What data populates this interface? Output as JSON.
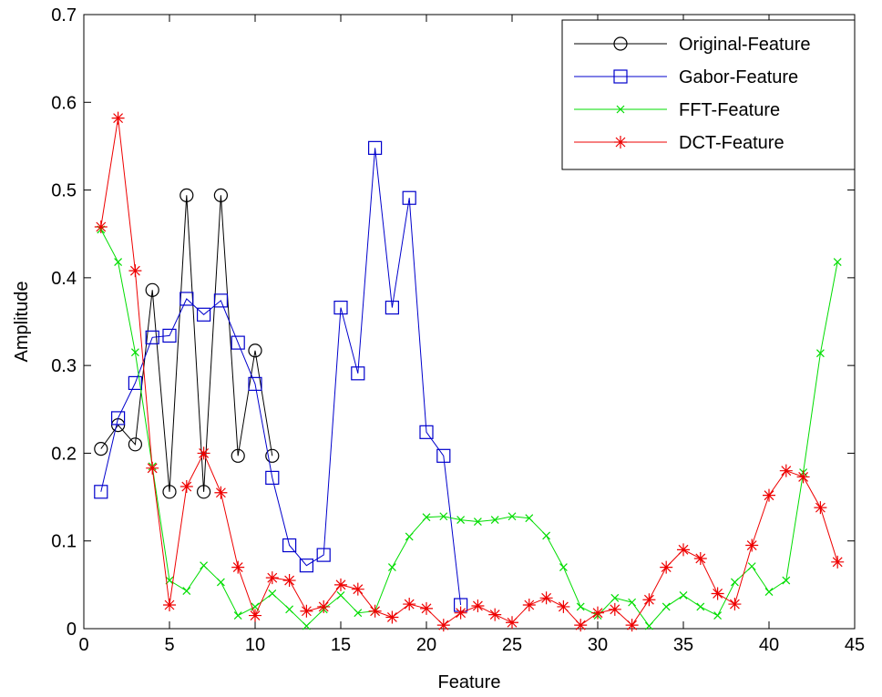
{
  "chart_data": {
    "type": "line",
    "xlabel": "Feature",
    "ylabel": "Amplitude",
    "xlim": [
      0,
      45
    ],
    "ylim": [
      0,
      0.7
    ],
    "xticks": [
      "0",
      "5",
      "10",
      "15",
      "20",
      "25",
      "30",
      "35",
      "40",
      "45"
    ],
    "yticks": [
      "0",
      "0.1",
      "0.2",
      "0.3",
      "0.4",
      "0.5",
      "0.6",
      "0.7"
    ],
    "legend_position": "top-right",
    "grid": false,
    "series": [
      {
        "name": "Original-Feature",
        "color": "#000000",
        "marker": "circle",
        "x": [
          1,
          2,
          3,
          4,
          5,
          6,
          7,
          8,
          9,
          10,
          11
        ],
        "values": [
          0.205,
          0.232,
          0.21,
          0.386,
          0.156,
          0.494,
          0.156,
          0.494,
          0.197,
          0.317,
          0.197
        ]
      },
      {
        "name": "Gabor-Feature",
        "color": "#0000cc",
        "marker": "square",
        "x": [
          1,
          2,
          3,
          4,
          5,
          6,
          7,
          8,
          9,
          10,
          11,
          12,
          13,
          14,
          15,
          16,
          17,
          18,
          19,
          20,
          21,
          22
        ],
        "values": [
          0.156,
          0.24,
          0.28,
          0.332,
          0.334,
          0.376,
          0.358,
          0.374,
          0.326,
          0.279,
          0.172,
          0.095,
          0.072,
          0.084,
          0.366,
          0.291,
          0.548,
          0.366,
          0.491,
          0.224,
          0.197,
          0.027
        ]
      },
      {
        "name": "FFT-Feature",
        "color": "#00dd00",
        "marker": "x",
        "x": [
          1,
          2,
          3,
          4,
          5,
          6,
          7,
          8,
          9,
          10,
          11,
          12,
          13,
          14,
          15,
          16,
          17,
          18,
          19,
          20,
          21,
          22,
          23,
          24,
          25,
          26,
          27,
          28,
          29,
          30,
          31,
          32,
          33,
          34,
          35,
          36,
          37,
          38,
          39,
          40,
          41,
          42,
          43,
          44
        ],
        "values": [
          0.455,
          0.418,
          0.315,
          0.185,
          0.055,
          0.043,
          0.072,
          0.053,
          0.015,
          0.025,
          0.04,
          0.022,
          0.003,
          0.022,
          0.038,
          0.018,
          0.02,
          0.07,
          0.105,
          0.127,
          0.128,
          0.124,
          0.122,
          0.124,
          0.128,
          0.126,
          0.106,
          0.07,
          0.025,
          0.015,
          0.035,
          0.03,
          0.003,
          0.025,
          0.038,
          0.025,
          0.015,
          0.053,
          0.071,
          0.042,
          0.055,
          0.178,
          0.314,
          0.418
        ]
      },
      {
        "name": "DCT-Feature",
        "color": "#ee0000",
        "marker": "star",
        "x": [
          1,
          2,
          3,
          4,
          5,
          6,
          7,
          8,
          9,
          10,
          11,
          12,
          13,
          14,
          15,
          16,
          17,
          18,
          19,
          20,
          21,
          22,
          23,
          24,
          25,
          26,
          27,
          28,
          29,
          30,
          31,
          32,
          33,
          34,
          35,
          36,
          37,
          38,
          39,
          40,
          41,
          42,
          43,
          44
        ],
        "values": [
          0.458,
          0.582,
          0.408,
          0.183,
          0.027,
          0.162,
          0.2,
          0.155,
          0.07,
          0.015,
          0.058,
          0.055,
          0.02,
          0.025,
          0.05,
          0.045,
          0.02,
          0.013,
          0.028,
          0.023,
          0.004,
          0.018,
          0.026,
          0.016,
          0.007,
          0.027,
          0.035,
          0.025,
          0.004,
          0.018,
          0.022,
          0.004,
          0.033,
          0.07,
          0.09,
          0.08,
          0.04,
          0.028,
          0.095,
          0.152,
          0.18,
          0.173,
          0.138,
          0.076
        ]
      }
    ]
  }
}
